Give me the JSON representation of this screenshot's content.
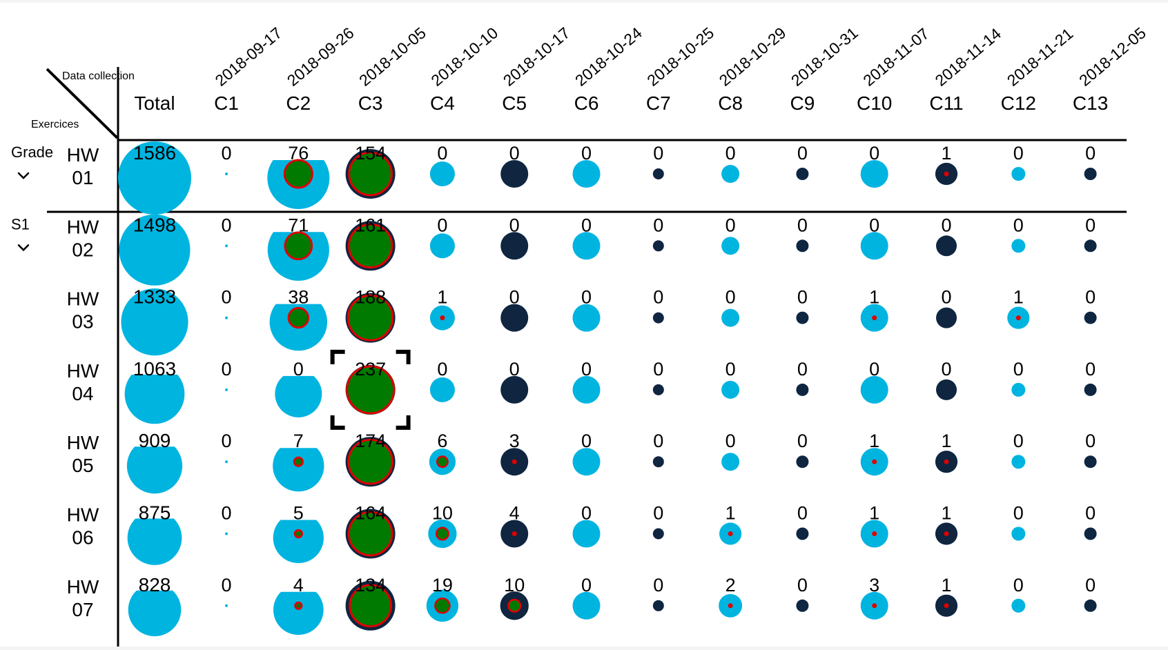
{
  "colors": {
    "light": "#00b4e0",
    "dark": "#0f2540",
    "green": "#007a00",
    "red": "#e00000",
    "line": "#000000"
  },
  "header": {
    "corner_top": "Data collection",
    "corner_bottom": "Exercices",
    "total_label": "Total"
  },
  "columns": [
    {
      "id": "C1",
      "date": "2018-09-17",
      "tone": "light"
    },
    {
      "id": "C2",
      "date": "2018-09-26",
      "tone": "light"
    },
    {
      "id": "C3",
      "date": "2018-10-05",
      "tone": "dark"
    },
    {
      "id": "C4",
      "date": "2018-10-10",
      "tone": "light"
    },
    {
      "id": "C5",
      "date": "2018-10-17",
      "tone": "dark"
    },
    {
      "id": "C6",
      "date": "2018-10-24",
      "tone": "light"
    },
    {
      "id": "C7",
      "date": "2018-10-25",
      "tone": "dark"
    },
    {
      "id": "C8",
      "date": "2018-10-29",
      "tone": "light"
    },
    {
      "id": "C9",
      "date": "2018-10-31",
      "tone": "dark"
    },
    {
      "id": "C10",
      "date": "2018-11-07",
      "tone": "light"
    },
    {
      "id": "C11",
      "date": "2018-11-14",
      "tone": "dark"
    },
    {
      "id": "C12",
      "date": "2018-11-21",
      "tone": "light"
    },
    {
      "id": "C13",
      "date": "2018-12-05",
      "tone": "dark"
    }
  ],
  "groups": [
    {
      "label": "Grade",
      "chevron": "chevron-down-icon",
      "rows": [
        0
      ]
    },
    {
      "label": "S1",
      "chevron": "chevron-down-icon",
      "rows": [
        1,
        2,
        3,
        4,
        5,
        6
      ]
    }
  ],
  "rows": [
    {
      "label": [
        "HW",
        "01"
      ],
      "total": 1586,
      "values": [
        0,
        76,
        154,
        0,
        0,
        0,
        0,
        0,
        0,
        0,
        1,
        0,
        0
      ]
    },
    {
      "label": [
        "HW",
        "02"
      ],
      "total": 1498,
      "values": [
        0,
        71,
        161,
        0,
        0,
        0,
        0,
        0,
        0,
        0,
        0,
        0,
        0
      ]
    },
    {
      "label": [
        "HW",
        "03"
      ],
      "total": 1333,
      "values": [
        0,
        38,
        188,
        1,
        0,
        0,
        0,
        0,
        0,
        1,
        0,
        1,
        0
      ]
    },
    {
      "label": [
        "HW",
        "04"
      ],
      "total": 1063,
      "values": [
        0,
        0,
        237,
        0,
        0,
        0,
        0,
        0,
        0,
        0,
        0,
        0,
        0
      ]
    },
    {
      "label": [
        "HW",
        "05"
      ],
      "total": 909,
      "values": [
        0,
        7,
        174,
        6,
        3,
        0,
        0,
        0,
        0,
        1,
        1,
        0,
        0
      ]
    },
    {
      "label": [
        "HW",
        "06"
      ],
      "total": 875,
      "values": [
        0,
        5,
        164,
        10,
        4,
        0,
        0,
        1,
        0,
        1,
        1,
        0,
        0
      ]
    },
    {
      "label": [
        "HW",
        "07"
      ],
      "total": 828,
      "values": [
        0,
        4,
        134,
        19,
        10,
        0,
        0,
        2,
        0,
        3,
        1,
        0,
        0
      ]
    }
  ],
  "selected_cell": {
    "row": 3,
    "col": 2
  }
}
